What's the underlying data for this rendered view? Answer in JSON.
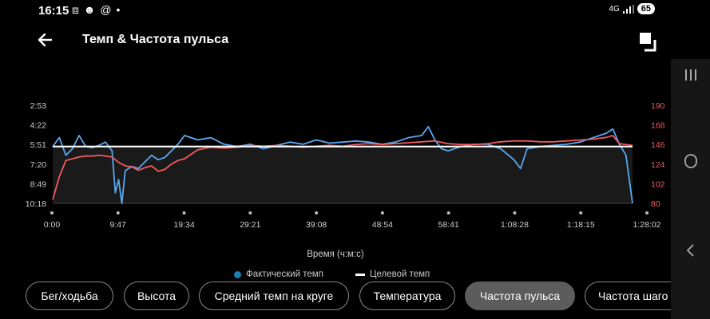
{
  "status_bar": {
    "time": "16:15",
    "notification_icons": "⧈ ☻ @ •",
    "network": "4G",
    "battery": "65"
  },
  "header": {
    "title": "Темп & Частота пульса"
  },
  "chart_data": {
    "type": "line",
    "title": "",
    "xlabel": "Время (ч:м:с)",
    "x_ticks": [
      "0:00",
      "9:47",
      "19:34",
      "29:21",
      "39:08",
      "48:54",
      "58:41",
      "1:08:28",
      "1:18:15",
      "1:28:02"
    ],
    "y_left_ticks": [
      "2:53",
      "4:22",
      "5:51",
      "7:20",
      "8:49",
      "10:18"
    ],
    "y_left_label": "",
    "y_right_ticks": [
      "190",
      "168",
      "146",
      "124",
      "102",
      "80"
    ],
    "y_right_range": [
      80,
      190
    ],
    "legend_placement": "bottom",
    "series": [
      {
        "name": "Фактический темп",
        "color": "#5aa8f0",
        "axis": "left-pace",
        "x": [
          0,
          1,
          2,
          3,
          4,
          5,
          6,
          7,
          8,
          9,
          9.5,
          10,
          10.5,
          11,
          12,
          13,
          14,
          15,
          16,
          17,
          18,
          19,
          20,
          22,
          24,
          26,
          28,
          30,
          32,
          34,
          36,
          38,
          40,
          42,
          44,
          46,
          48,
          50,
          52,
          54,
          56,
          57,
          58,
          59,
          60,
          62,
          64,
          66,
          68,
          70,
          71,
          72,
          74,
          76,
          78,
          80,
          82,
          84,
          85,
          86,
          87,
          88
        ],
        "y": [
          "6:00",
          "5:20",
          "6:40",
          "6:10",
          "5:10",
          "6:00",
          "6:05",
          "5:55",
          "5:40",
          "6:20",
          "9:30",
          "8:30",
          "10:18",
          "7:50",
          "7:30",
          "7:40",
          "7:10",
          "6:40",
          "7:00",
          "6:50",
          "6:20",
          "5:50",
          "5:10",
          "5:30",
          "5:20",
          "5:50",
          "6:00",
          "5:50",
          "6:10",
          "5:55",
          "5:40",
          "5:50",
          "5:30",
          "5:45",
          "5:40",
          "5:35",
          "5:40",
          "5:50",
          "5:40",
          "5:20",
          "5:10",
          "4:30",
          "5:30",
          "6:10",
          "6:20",
          "6:00",
          "5:50",
          "5:50",
          "6:10",
          "7:00",
          "7:40",
          "6:10",
          "6:00",
          "5:55",
          "5:50",
          "5:40",
          "5:20",
          "5:00",
          "4:40",
          "5:50",
          "6:40",
          "10:18"
        ]
      },
      {
        "name": "Частота пульса",
        "color": "#f05a5f",
        "axis": "right",
        "x": [
          0,
          1,
          2,
          3,
          4,
          5,
          6,
          7,
          8,
          9,
          10,
          11,
          12,
          13,
          14,
          15,
          16,
          17,
          18,
          19,
          20,
          22,
          24,
          26,
          28,
          30,
          32,
          34,
          36,
          38,
          40,
          42,
          44,
          46,
          48,
          50,
          52,
          54,
          56,
          58,
          60,
          62,
          64,
          66,
          68,
          70,
          72,
          74,
          76,
          78,
          80,
          82,
          84,
          85,
          86,
          88
        ],
        "y": [
          84,
          110,
          128,
          130,
          132,
          133,
          133,
          134,
          133,
          132,
          126,
          122,
          121,
          117,
          120,
          122,
          116,
          118,
          124,
          128,
          130,
          140,
          143,
          142,
          143,
          145,
          144,
          145,
          144,
          143,
          144,
          145,
          144,
          146,
          147,
          146,
          147,
          148,
          149,
          150,
          147,
          146,
          146,
          147,
          149,
          150,
          150,
          149,
          149,
          150,
          151,
          152,
          154,
          156,
          147,
          145
        ]
      },
      {
        "name": "Целевой темп",
        "color": "#ffffff",
        "axis": "left-pace",
        "x": [
          0,
          88
        ],
        "y": [
          "6:00",
          "6:00"
        ]
      }
    ]
  },
  "legend": {
    "actual_pace": "Фактический темп",
    "target_pace": "Целевой темп"
  },
  "chips": [
    {
      "label": "Бег/ходьба",
      "active": false
    },
    {
      "label": "Высота",
      "active": false
    },
    {
      "label": "Средний темп на круге",
      "active": false
    },
    {
      "label": "Температура",
      "active": false
    },
    {
      "label": "Частота пульса",
      "active": true
    },
    {
      "label": "Частота шаго",
      "active": false
    }
  ],
  "nav": {
    "recents": "|||",
    "home": "○",
    "back": "<"
  }
}
